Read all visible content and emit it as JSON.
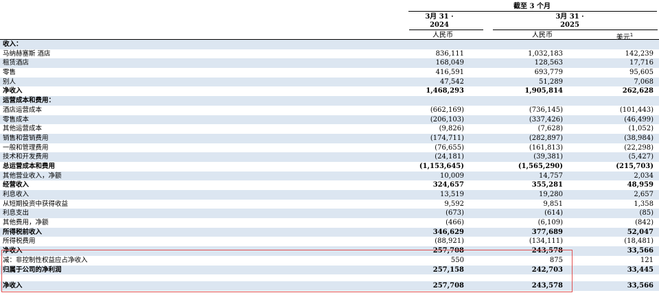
{
  "header": {
    "period": "截至 3 个月",
    "col1_date": "3月 31 ·",
    "col1_year": "2024",
    "col2_date": "3月 31 ·",
    "col2_year": "2025",
    "col1_currency": "人民币",
    "col2_currency": "人民币",
    "col3_currency": "美元",
    "col3_footnote": "1"
  },
  "rows": [
    {
      "label": "收入：",
      "v1": "",
      "v2": "",
      "v3": "",
      "style": "hdrrow"
    },
    {
      "label": "马纳赫塞斯 酒店",
      "v1": "836,111",
      "v2": "1,032,183",
      "v3": "142,239",
      "style": ""
    },
    {
      "label": "租赁酒店",
      "v1": "168,049",
      "v2": "128,563",
      "v3": "17,716",
      "style": ""
    },
    {
      "label": "零售",
      "v1": "416,591",
      "v2": "693,779",
      "v3": "95,605",
      "style": ""
    },
    {
      "label": "别人",
      "v1": "47,542",
      "v2": "51,289",
      "v3": "7,068",
      "style": ""
    },
    {
      "label": "净收入",
      "v1": "1,468,293",
      "v2": "1,905,814",
      "v3": "262,628",
      "style": "bold"
    },
    {
      "label": "运营成本和费用：",
      "v1": "",
      "v2": "",
      "v3": "",
      "style": "hdrrow"
    },
    {
      "label": "酒店运营成本",
      "v1": "(662,169)",
      "v2": "(736,145)",
      "v3": "(101,443)",
      "style": ""
    },
    {
      "label": "零售成本",
      "v1": "(206,103)",
      "v2": "(337,426)",
      "v3": "(46,499)",
      "style": ""
    },
    {
      "label": "其他运营成本",
      "v1": "(9,826)",
      "v2": "(7,628)",
      "v3": "(1,052)",
      "style": ""
    },
    {
      "label": "销售和营销费用",
      "v1": "(174,711)",
      "v2": "(282,897)",
      "v3": "(38,984)",
      "style": ""
    },
    {
      "label": "一般和管理费用",
      "v1": "(76,655)",
      "v2": "(161,813)",
      "v3": "(22,298)",
      "style": ""
    },
    {
      "label": "技术和开发费用",
      "v1": "(24,181)",
      "v2": "(39,381)",
      "v3": "(5,427)",
      "style": ""
    },
    {
      "label": "总运营成本和费用",
      "v1": "(1,153,645)",
      "v2": "(1,565,290)",
      "v3": "(215,703)",
      "style": "bold"
    },
    {
      "label": "其他营业收入，净额",
      "v1": "10,009",
      "v2": "14,757",
      "v3": "2,034",
      "style": ""
    },
    {
      "label": "经营收入",
      "v1": "324,657",
      "v2": "355,281",
      "v3": "48,959",
      "style": "bold"
    },
    {
      "label": "利息收入",
      "v1": "13,519",
      "v2": "19,280",
      "v3": "2,657",
      "style": ""
    },
    {
      "label": "从短期投资中获得收益",
      "v1": "9,592",
      "v2": "9,851",
      "v3": "1,358",
      "style": ""
    },
    {
      "label": "利息支出",
      "v1": "(673)",
      "v2": "(614)",
      "v3": "(85)",
      "style": ""
    },
    {
      "label": "其他费用，净额",
      "v1": "(466)",
      "v2": "(6,109)",
      "v3": "(842)",
      "style": ""
    },
    {
      "label": "所得税前收入",
      "v1": "346,629",
      "v2": "377,689",
      "v3": "52,047",
      "style": "bold"
    },
    {
      "label": "所得税费用",
      "v1": "(88,921)",
      "v2": "(134,111)",
      "v3": "(18,481)",
      "style": ""
    },
    {
      "label": "净收入",
      "v1": "257,708",
      "v2": "243,578",
      "v3": "33,566",
      "style": "bold"
    },
    {
      "label": "减：非控制性权益应占净收入",
      "v1": "550",
      "v2": "875",
      "v3": "121",
      "style": ""
    },
    {
      "label": "归属于公司的净利润",
      "v1": "257,158",
      "v2": "242,703",
      "v3": "33,445",
      "style": "bold"
    },
    {
      "label": "",
      "v1": "",
      "v2": "",
      "v3": "",
      "style": "blank"
    },
    {
      "label": "净收入",
      "v1": "257,708",
      "v2": "243,578",
      "v3": "33,566",
      "style": "bold"
    }
  ]
}
